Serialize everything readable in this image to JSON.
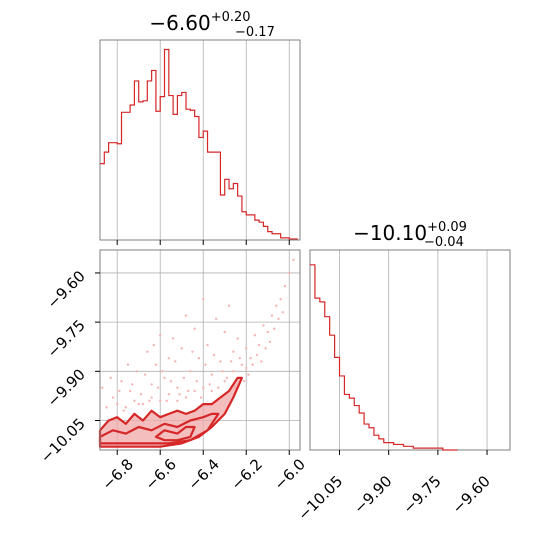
{
  "colors": {
    "series": "#d62728",
    "fill_light": "#f0a8a8",
    "points": "#f4b4b4",
    "frame": "#7f7f7f",
    "grid": "#b0b0b0"
  },
  "chart_data": [
    {
      "type": "histogram",
      "panel": "marginal-param-1",
      "title": {
        "median": "−6.60",
        "upper": "+0.20",
        "lower": "−0.17"
      },
      "xlim": [
        -6.88,
        -5.95
      ],
      "grid": true,
      "bin_edges": [
        -6.88,
        -6.86,
        -6.84,
        -6.82,
        -6.8,
        -6.78,
        -6.76,
        -6.74,
        -6.72,
        -6.7,
        -6.68,
        -6.66,
        -6.64,
        -6.62,
        -6.6,
        -6.58,
        -6.56,
        -6.54,
        -6.52,
        -6.5,
        -6.48,
        -6.46,
        -6.44,
        -6.42,
        -6.4,
        -6.38,
        -6.36,
        -6.34,
        -6.32,
        -6.3,
        -6.28,
        -6.26,
        -6.24,
        -6.22,
        -6.2,
        -6.18,
        -6.16,
        -6.14,
        -6.12,
        -6.1,
        -6.08,
        -6.06,
        -6.04,
        -6.02,
        -6.0,
        -5.98,
        -5.96
      ],
      "counts": [
        73,
        84,
        93,
        93,
        92,
        122,
        122,
        129,
        152,
        132,
        133,
        152,
        162,
        123,
        137,
        182,
        138,
        120,
        138,
        141,
        125,
        124,
        118,
        98,
        104,
        84,
        84,
        84,
        43,
        58,
        49,
        54,
        42,
        27,
        24,
        24,
        19,
        17,
        13,
        8,
        6,
        6,
        2,
        2,
        1,
        1
      ]
    },
    {
      "type": "histogram",
      "panel": "marginal-param-2",
      "title": {
        "median": "−10.10",
        "upper": "+0.09",
        "lower": "−0.04"
      },
      "xlim": [
        -10.14,
        -9.53
      ],
      "xticks": [
        "−10.05",
        "−9.90",
        "−9.75",
        "−9.60"
      ],
      "xtick_values": [
        -10.05,
        -9.9,
        -9.75,
        -9.6
      ],
      "grid": true,
      "bin_edges": [
        -10.14,
        -10.125,
        -10.11,
        -10.095,
        -10.08,
        -10.065,
        -10.05,
        -10.035,
        -10.02,
        -10.005,
        -9.99,
        -9.975,
        -9.96,
        -9.945,
        -9.93,
        -9.915,
        -9.9,
        -9.885,
        -9.87,
        -9.855,
        -9.84,
        -9.825,
        -9.81,
        -9.795,
        -9.78,
        -9.765,
        -9.75,
        -9.735,
        -9.72,
        -9.705,
        -9.69
      ],
      "counts": [
        100,
        82,
        80,
        72,
        62,
        50,
        40,
        30,
        28,
        24,
        20,
        14,
        12,
        8,
        6,
        4,
        4,
        3,
        3,
        2,
        2,
        1,
        1,
        1,
        1,
        1,
        1,
        0,
        0,
        0
      ]
    },
    {
      "type": "contour",
      "panel": "joint-param-1-param-2",
      "xlim": [
        -6.88,
        -5.95
      ],
      "ylim": [
        -10.14,
        -9.53
      ],
      "xticks": [
        "−6.8",
        "−6.6",
        "−6.4",
        "−6.2",
        "−6.0"
      ],
      "xtick_values": [
        -6.8,
        -6.6,
        -6.4,
        -6.2,
        -6.0
      ],
      "yticks": [
        "−9.60",
        "−9.75",
        "−9.90",
        "−10.05"
      ],
      "ytick_values": [
        -9.6,
        -9.75,
        -9.9,
        -10.05
      ],
      "grid": true,
      "contours": [
        {
          "level": "outer",
          "points": [
            [
              -6.88,
              -10.08
            ],
            [
              -6.84,
              -10.05
            ],
            [
              -6.8,
              -10.04
            ],
            [
              -6.76,
              -10.06
            ],
            [
              -6.72,
              -10.03
            ],
            [
              -6.68,
              -10.05
            ],
            [
              -6.64,
              -10.02
            ],
            [
              -6.6,
              -10.04
            ],
            [
              -6.56,
              -10.03
            ],
            [
              -6.52,
              -10.02
            ],
            [
              -6.48,
              -10.03
            ],
            [
              -6.44,
              -10.02
            ],
            [
              -6.4,
              -10.0
            ],
            [
              -6.36,
              -10.0
            ],
            [
              -6.32,
              -9.98
            ],
            [
              -6.28,
              -9.96
            ],
            [
              -6.24,
              -9.92
            ],
            [
              -6.22,
              -9.92
            ],
            [
              -6.26,
              -9.98
            ],
            [
              -6.3,
              -10.03
            ],
            [
              -6.36,
              -10.07
            ],
            [
              -6.42,
              -10.1
            ],
            [
              -6.5,
              -10.12
            ],
            [
              -6.6,
              -10.13
            ],
            [
              -6.7,
              -10.13
            ],
            [
              -6.8,
              -10.13
            ],
            [
              -6.88,
              -10.13
            ]
          ]
        },
        {
          "level": "middle",
          "points": [
            [
              -6.88,
              -10.1
            ],
            [
              -6.82,
              -10.08
            ],
            [
              -6.76,
              -10.09
            ],
            [
              -6.7,
              -10.07
            ],
            [
              -6.64,
              -10.08
            ],
            [
              -6.58,
              -10.06
            ],
            [
              -6.52,
              -10.07
            ],
            [
              -6.46,
              -10.05
            ],
            [
              -6.4,
              -10.04
            ],
            [
              -6.36,
              -10.03
            ],
            [
              -6.33,
              -10.03
            ],
            [
              -6.38,
              -10.08
            ],
            [
              -6.46,
              -10.11
            ],
            [
              -6.56,
              -10.12
            ],
            [
              -6.66,
              -10.12
            ],
            [
              -6.76,
              -10.12
            ],
            [
              -6.88,
              -10.12
            ]
          ]
        },
        {
          "level": "inner",
          "points": [
            [
              -6.62,
              -10.1
            ],
            [
              -6.58,
              -10.08
            ],
            [
              -6.52,
              -10.09
            ],
            [
              -6.48,
              -10.07
            ],
            [
              -6.44,
              -10.07
            ],
            [
              -6.46,
              -10.1
            ],
            [
              -6.52,
              -10.11
            ],
            [
              -6.58,
              -10.11
            ]
          ]
        }
      ],
      "samples": [
        [
          -6.82,
          -9.98
        ],
        [
          -6.78,
          -9.93
        ],
        [
          -6.74,
          -9.96
        ],
        [
          -6.71,
          -9.9
        ],
        [
          -6.69,
          -9.97
        ],
        [
          -6.66,
          -9.84
        ],
        [
          -6.64,
          -9.94
        ],
        [
          -6.62,
          -9.88
        ],
        [
          -6.6,
          -9.79
        ],
        [
          -6.58,
          -9.92
        ],
        [
          -6.56,
          -9.86
        ],
        [
          -6.54,
          -9.8
        ],
        [
          -6.52,
          -9.95
        ],
        [
          -6.5,
          -9.83
        ],
        [
          -6.48,
          -9.73
        ],
        [
          -6.46,
          -9.9
        ],
        [
          -6.44,
          -9.77
        ],
        [
          -6.42,
          -9.86
        ],
        [
          -6.4,
          -9.68
        ],
        [
          -6.38,
          -9.82
        ],
        [
          -6.36,
          -9.91
        ],
        [
          -6.34,
          -9.74
        ],
        [
          -6.32,
          -9.87
        ],
        [
          -6.3,
          -9.78
        ],
        [
          -6.28,
          -9.7
        ],
        [
          -6.26,
          -9.84
        ],
        [
          -6.24,
          -9.8
        ],
        [
          -6.22,
          -9.88
        ],
        [
          -6.2,
          -9.83
        ],
        [
          -6.18,
          -9.86
        ],
        [
          -6.16,
          -9.79
        ],
        [
          -6.14,
          -9.82
        ],
        [
          -6.12,
          -9.76
        ],
        [
          -6.1,
          -9.78
        ],
        [
          -6.08,
          -9.73
        ],
        [
          -6.06,
          -9.7
        ],
        [
          -6.04,
          -9.68
        ],
        [
          -6.02,
          -9.64
        ],
        [
          -6.0,
          -9.6
        ],
        [
          -5.98,
          -9.56
        ],
        [
          -6.8,
          -10.0
        ],
        [
          -6.76,
          -10.01
        ],
        [
          -6.72,
          -9.99
        ],
        [
          -6.68,
          -10.0
        ],
        [
          -6.64,
          -9.98
        ],
        [
          -6.6,
          -9.99
        ],
        [
          -6.56,
          -9.97
        ],
        [
          -6.52,
          -9.99
        ],
        [
          -6.48,
          -9.98
        ],
        [
          -6.44,
          -9.96
        ],
        [
          -6.4,
          -9.95
        ],
        [
          -6.36,
          -9.96
        ],
        [
          -6.3,
          -9.93
        ],
        [
          -6.26,
          -9.9
        ],
        [
          -6.2,
          -9.89
        ],
        [
          -6.87,
          -9.95
        ],
        [
          -6.85,
          -10.01
        ],
        [
          -6.83,
          -9.92
        ],
        [
          -6.79,
          -9.96
        ],
        [
          -6.77,
          -10.02
        ],
        [
          -6.75,
          -9.88
        ],
        [
          -6.73,
          -9.94
        ],
        [
          -6.7,
          -10.0
        ],
        [
          -6.67,
          -9.91
        ],
        [
          -6.65,
          -9.99
        ],
        [
          -6.63,
          -9.82
        ],
        [
          -6.61,
          -9.95
        ],
        [
          -6.59,
          -9.9
        ],
        [
          -6.57,
          -9.99
        ],
        [
          -6.55,
          -9.93
        ],
        [
          -6.53,
          -9.87
        ],
        [
          -6.51,
          -9.97
        ],
        [
          -6.49,
          -9.92
        ],
        [
          -6.47,
          -9.96
        ],
        [
          -6.45,
          -9.84
        ],
        [
          -6.43,
          -9.93
        ],
        [
          -6.41,
          -9.98
        ],
        [
          -6.39,
          -9.88
        ],
        [
          -6.37,
          -9.94
        ],
        [
          -6.35,
          -9.85
        ],
        [
          -6.33,
          -9.95
        ],
        [
          -6.31,
          -9.9
        ],
        [
          -6.29,
          -9.92
        ],
        [
          -6.27,
          -9.87
        ],
        [
          -6.25,
          -9.95
        ],
        [
          -6.23,
          -9.86
        ],
        [
          -6.21,
          -9.93
        ],
        [
          -6.19,
          -9.91
        ],
        [
          -6.17,
          -9.88
        ],
        [
          -6.15,
          -9.85
        ],
        [
          -6.13,
          -9.87
        ],
        [
          -6.11,
          -9.83
        ],
        [
          -6.09,
          -9.81
        ],
        [
          -6.07,
          -9.77
        ],
        [
          -6.05,
          -9.74
        ],
        [
          -6.03,
          -9.72
        ]
      ]
    }
  ]
}
